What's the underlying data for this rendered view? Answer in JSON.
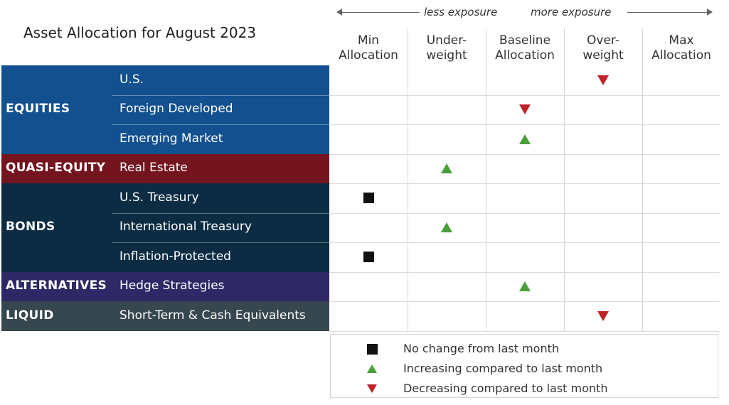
{
  "title": "Asset Allocation for August 2023",
  "exposure": {
    "left_label": "less exposure",
    "right_label": "more exposure"
  },
  "colors": {
    "equities": "#12508f",
    "quasi_equity": "#74141f",
    "bonds": "#0c2c44",
    "alternatives": "#2e2866",
    "liquid": "#37474f",
    "increase": "#4a9e3a",
    "decrease": "#c0222a",
    "no_change": "#111111"
  },
  "columns": [
    {
      "line1": "Min",
      "line2": "Allocation"
    },
    {
      "line1": "Under-",
      "line2": "weight"
    },
    {
      "line1": "Baseline",
      "line2": "Allocation"
    },
    {
      "line1": "Over-",
      "line2": "weight"
    },
    {
      "line1": "Max",
      "line2": "Allocation"
    }
  ],
  "chart_data": {
    "type": "table",
    "title": "Asset Allocation for August 2023",
    "groups": [
      {
        "name": "EQUITIES",
        "rows": [
          {
            "label": "U.S.",
            "position": "Over-weight",
            "change": "decreasing"
          },
          {
            "label": "Foreign Developed",
            "position": "Baseline Allocation",
            "change": "decreasing"
          },
          {
            "label": "Emerging Market",
            "position": "Baseline Allocation",
            "change": "increasing"
          }
        ]
      },
      {
        "name": "QUASI-EQUITY",
        "rows": [
          {
            "label": "Real Estate",
            "position": "Under-weight",
            "change": "increasing"
          }
        ]
      },
      {
        "name": "BONDS",
        "rows": [
          {
            "label": "U.S. Treasury",
            "position": "Min Allocation",
            "change": "no_change"
          },
          {
            "label": "International Treasury",
            "position": "Under-weight",
            "change": "increasing"
          },
          {
            "label": "Inflation-Protected",
            "position": "Min Allocation",
            "change": "no_change"
          }
        ]
      },
      {
        "name": "ALTERNATIVES",
        "rows": [
          {
            "label": "Hedge Strategies",
            "position": "Baseline Allocation",
            "change": "increasing"
          }
        ]
      },
      {
        "name": "LIQUID",
        "rows": [
          {
            "label": "Short-Term & Cash Equivalents",
            "position": "Over-weight",
            "change": "decreasing"
          }
        ]
      }
    ]
  },
  "legend": [
    {
      "icon": "square",
      "text": "No change from last month"
    },
    {
      "icon": "triangle-up",
      "text": "Increasing compared to last month"
    },
    {
      "icon": "triangle-down",
      "text": "Decreasing compared to last month"
    }
  ]
}
